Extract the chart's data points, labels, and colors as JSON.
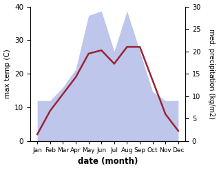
{
  "months": [
    "Jan",
    "Feb",
    "Mar",
    "Apr",
    "May",
    "Jun",
    "Jul",
    "Aug",
    "Sep",
    "Oct",
    "Nov",
    "Dec"
  ],
  "temperature": [
    2,
    9,
    14,
    19,
    26,
    27,
    23,
    28,
    28,
    18,
    8,
    3
  ],
  "precipitation": [
    9,
    9,
    12,
    16,
    28,
    29,
    20,
    29,
    20,
    11,
    9,
    9
  ],
  "temp_color": "#9b2335",
  "precip_color_fill": "#b3bce8",
  "left_ylim": [
    0,
    40
  ],
  "right_ylim": [
    0,
    30
  ],
  "left_yticks": [
    0,
    10,
    20,
    30,
    40
  ],
  "right_yticks": [
    0,
    5,
    10,
    15,
    20,
    25,
    30
  ],
  "xlabel": "date (month)",
  "ylabel_left": "max temp (C)",
  "ylabel_right": "med. precipitation (kg/m2)",
  "background_color": "#ffffff",
  "figsize": [
    3.18,
    2.47
  ],
  "dpi": 100
}
